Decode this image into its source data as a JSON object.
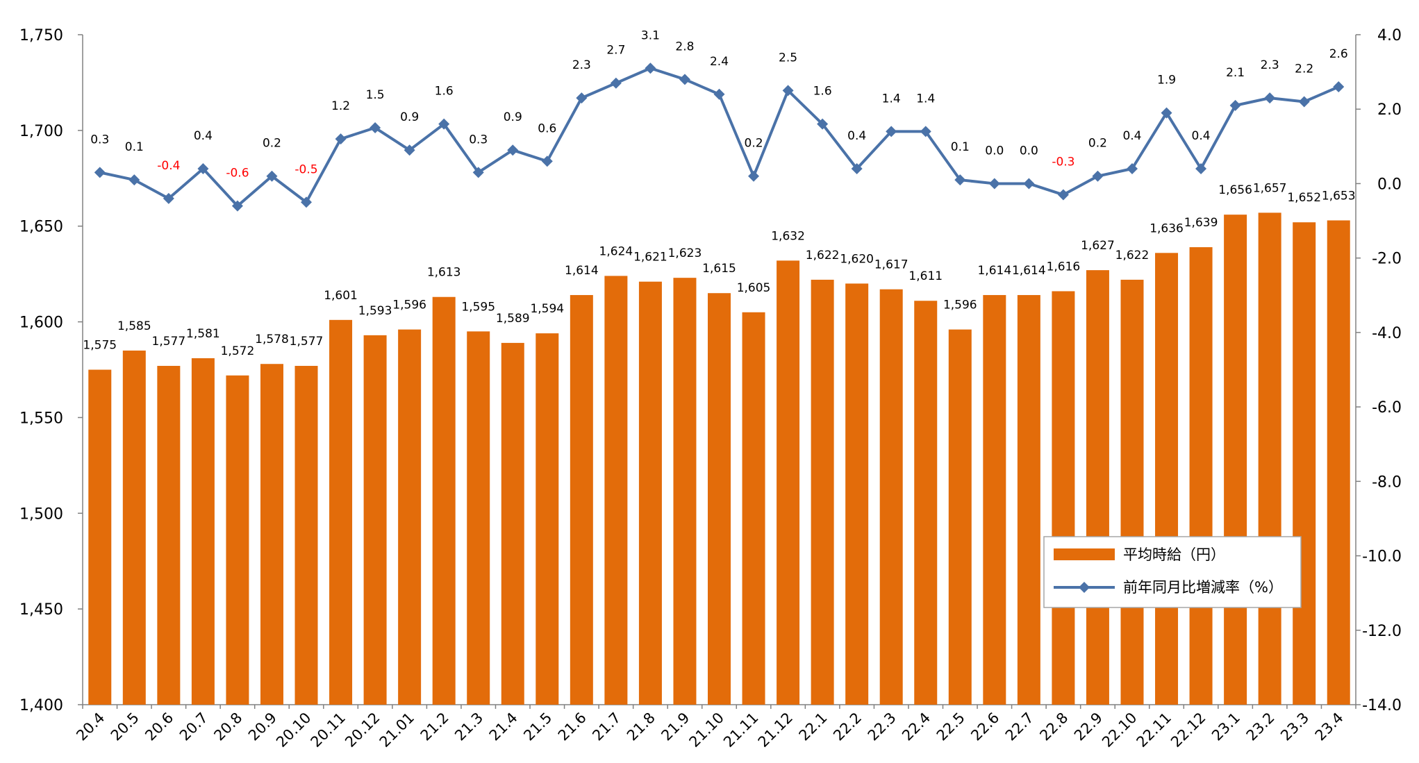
{
  "chart_data": {
    "type": "bar+line",
    "categories": [
      "20.4",
      "20.5",
      "20.6",
      "20.7",
      "20.8",
      "20.9",
      "20.10",
      "20.11",
      "20.12",
      "21.01",
      "21.2",
      "21.3",
      "21.4",
      "21.5",
      "21.6",
      "21.7",
      "21.8",
      "21.9",
      "21.10",
      "21.11",
      "21.12",
      "22.1",
      "22.2",
      "22.3",
      "22.4",
      "22.5",
      "22.6",
      "22.7",
      "22.8",
      "22.9",
      "22.10",
      "22.11",
      "22.12",
      "23.1",
      "23.2",
      "23.3",
      "23.4"
    ],
    "series": [
      {
        "name": "平均時給（円）",
        "type": "bar",
        "axis": "left",
        "color": "#E36C0A",
        "values": [
          1575,
          1585,
          1577,
          1581,
          1572,
          1578,
          1577,
          1601,
          1593,
          1596,
          1613,
          1595,
          1589,
          1594,
          1614,
          1624,
          1621,
          1623,
          1615,
          1605,
          1632,
          1622,
          1620,
          1617,
          1611,
          1596,
          1614,
          1614,
          1616,
          1627,
          1622,
          1636,
          1639,
          1656,
          1657,
          1652,
          1653
        ],
        "labels": [
          "1,575",
          "1,585",
          "1,577",
          "1,581",
          "1,572",
          "1,578",
          "1,577",
          "1,601",
          "1,593",
          "1,596",
          "1,613",
          "1,595",
          "1,589",
          "1,594",
          "1,614",
          "1,624",
          "1,621",
          "1,623",
          "1,615",
          "1,605",
          "1,632",
          "1,622",
          "1,620",
          "1,617",
          "1,611",
          "1,596",
          "1,614",
          "1,614",
          "1,616",
          "1,627",
          "1,622",
          "1,636",
          "1,639",
          "1,656",
          "1,657",
          "1,652",
          "1,653"
        ]
      },
      {
        "name": "前年同月比増減率（%）",
        "type": "line",
        "axis": "right",
        "color": "#4A72A8",
        "negative_label_color": "#FF0000",
        "values": [
          0.3,
          0.1,
          -0.4,
          0.4,
          -0.6,
          0.2,
          -0.5,
          1.2,
          1.5,
          0.9,
          1.6,
          0.3,
          0.9,
          0.6,
          2.3,
          2.7,
          3.1,
          2.8,
          2.4,
          0.2,
          2.5,
          1.6,
          0.4,
          1.4,
          1.4,
          0.1,
          0.0,
          0.0,
          -0.3,
          0.2,
          0.4,
          1.9,
          0.4,
          2.1,
          2.3,
          2.2,
          2.6
        ],
        "labels": [
          "0.3",
          "0.1",
          "-0.4",
          "0.4",
          "-0.6",
          "0.2",
          "-0.5",
          "1.2",
          "1.5",
          "0.9",
          "1.6",
          "0.3",
          "0.9",
          "0.6",
          "2.3",
          "2.7",
          "3.1",
          "2.8",
          "2.4",
          "0.2",
          "2.5",
          "1.6",
          "0.4",
          "1.4",
          "1.4",
          "0.1",
          "0.0",
          "0.0",
          "-0.3",
          "0.2",
          "0.4",
          "1.9",
          "0.4",
          "2.1",
          "2.3",
          "2.2",
          "2.6"
        ]
      }
    ],
    "y_left": {
      "min": 1400,
      "max": 1750,
      "ticks": [
        1400,
        1450,
        1500,
        1550,
        1600,
        1650,
        1700,
        1750
      ],
      "tick_labels": [
        "1,400",
        "1,450",
        "1,500",
        "1,550",
        "1,600",
        "1,650",
        "1,700",
        "1,750"
      ]
    },
    "y_right": {
      "min": -14.0,
      "max": 4.0,
      "ticks": [
        4.0,
        2.0,
        0.0,
        -2.0,
        -4.0,
        -6.0,
        -8.0,
        -10.0,
        -12.0,
        -14.0
      ],
      "tick_labels": [
        "4.0",
        "2.0",
        "0.0",
        "-2.0",
        "-4.0",
        "-6.0",
        "-8.0",
        "-10.0",
        "-12.0",
        "-14.0"
      ],
      "tick_color": "#FF0000"
    },
    "legend": {
      "position": "lower-right",
      "entries": [
        "平均時給（円）",
        "前年同月比増減率（%）"
      ]
    },
    "grid": false
  }
}
